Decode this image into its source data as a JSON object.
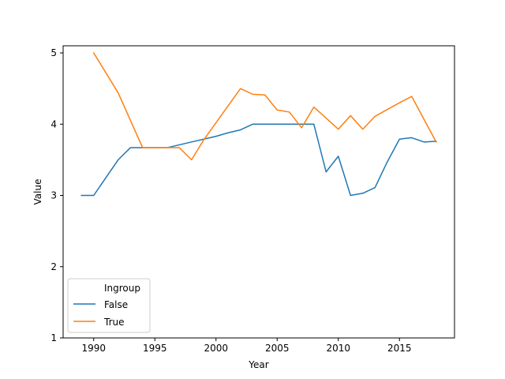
{
  "chart_data": {
    "type": "line",
    "title": "",
    "xlabel": "Year",
    "ylabel": "Value",
    "xlim": [
      1987.5,
      2019.5
    ],
    "ylim": [
      1,
      5.1
    ],
    "xticks": [
      "1990",
      "1995",
      "2000",
      "2005",
      "2010",
      "2015"
    ],
    "yticks": [
      "1",
      "2",
      "3",
      "4",
      "5"
    ],
    "grid": false,
    "legend": {
      "title": "Ingroup",
      "placement": "lower-left"
    },
    "series": [
      {
        "name": "False",
        "color": "#1f77b4",
        "x": [
          1989,
          1990,
          1991,
          1992,
          1993,
          1994,
          1995,
          1996,
          1997,
          1998,
          1999,
          2000,
          2001,
          2002,
          2003,
          2004,
          2005,
          2006,
          2007,
          2008,
          2009,
          2010,
          2011,
          2012,
          2013,
          2014,
          2015,
          2016,
          2017,
          2018
        ],
        "y": [
          3.0,
          3.0,
          3.25,
          3.5,
          3.67,
          3.67,
          3.67,
          3.67,
          3.71,
          3.75,
          3.79,
          3.83,
          3.88,
          3.92,
          4.0,
          4.0,
          4.0,
          4.0,
          4.0,
          4.0,
          3.33,
          3.55,
          3.0,
          3.03,
          3.11,
          3.47,
          3.79,
          3.81,
          3.75,
          3.76
        ]
      },
      {
        "name": "True",
        "color": "#ff7f0e",
        "x": [
          1990,
          1992,
          1994,
          1996,
          1997,
          1998,
          1999,
          2002,
          2003,
          2004,
          2005,
          2006,
          2007,
          2008,
          2010,
          2011,
          2012,
          2013,
          2015,
          2016,
          2018
        ],
        "y": [
          5.0,
          4.44,
          3.67,
          3.67,
          3.67,
          3.5,
          3.78,
          4.5,
          4.42,
          4.41,
          4.2,
          4.17,
          3.95,
          4.24,
          3.93,
          4.12,
          3.93,
          4.11,
          4.3,
          4.39,
          3.75
        ]
      }
    ]
  }
}
